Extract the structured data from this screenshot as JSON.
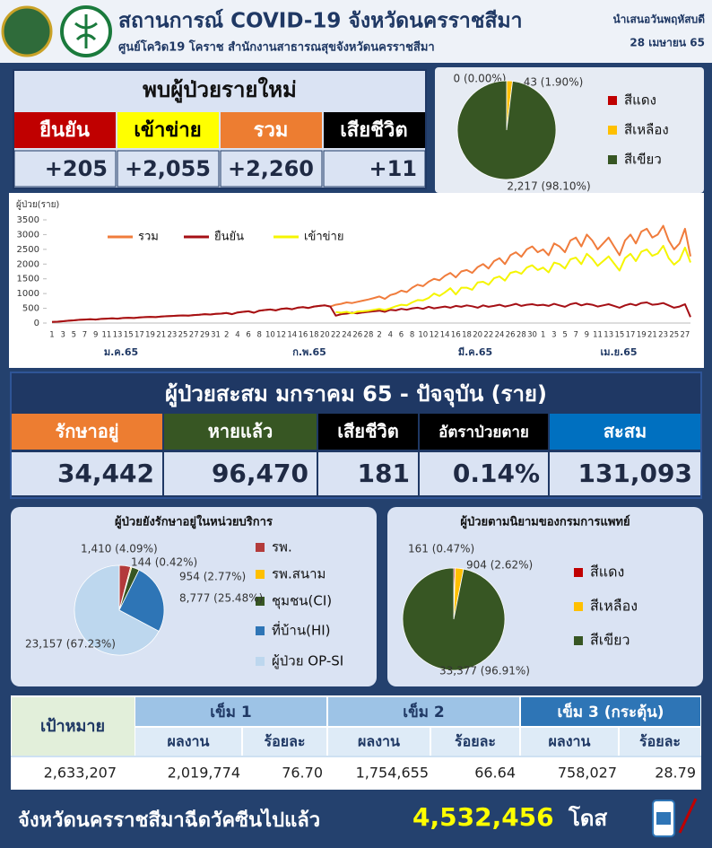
{
  "header": {
    "title": "สถานการณ์ COVID-19 จังหวัดนครราชสีมา",
    "subtitle": "ศูนย์โควิด19 โคราช สำนักงานสาธารณสุขจังหวัดนครราชสีมา",
    "presented": "นำเสนอวันพฤหัสบดี",
    "date": "28 เมษายน 65"
  },
  "new_cases": {
    "title": "พบผู้ป่วยรายใหม่",
    "headers": [
      "ยืนยัน",
      "เข้าข่าย",
      "รวม",
      "เสียชีวิต"
    ],
    "values": [
      "+205",
      "+2,055",
      "+2,260",
      "+11"
    ]
  },
  "cumulative": {
    "title": "ผู้ป่วยสะสม มกราคม 65 - ปัจจุบัน (ราย)",
    "headers": [
      "รักษาอยู่",
      "หายแล้ว",
      "เสียชีวิต",
      "อัตราป่วยตาย",
      "สะสม"
    ],
    "values": [
      "34,442",
      "96,470",
      "181",
      "0.14%",
      "131,093"
    ]
  },
  "vaccine": {
    "target_header": "เป้าหมาย",
    "dose_headers": [
      "เข็ม 1",
      "เข็ม 2",
      "เข็ม 3 (กระตุ้น)"
    ],
    "sub_headers": [
      "ผลงาน",
      "ร้อยละ",
      "ผลงาน",
      "ร้อยละ",
      "ผลงาน",
      "ร้อยละ"
    ],
    "row": [
      "2,633,207",
      "2,019,774",
      "76.70",
      "1,754,655",
      "66.64",
      "758,027",
      "28.79"
    ],
    "footer": {
      "text": "จังหวัดนครราชสีมาฉีดวัคซีนไปแล้ว",
      "total": "4,532,456",
      "unit": "โดส"
    }
  },
  "chart_data": [
    {
      "type": "pie",
      "categories": [
        "สีแดง",
        "สีเหลือง",
        "สีเขียว"
      ],
      "values": [
        0,
        43,
        2217
      ],
      "value_labels": [
        "0 (0.00%)",
        "43 (1.90%)",
        "2,217 (98.10%)"
      ],
      "colors": [
        "#c00000",
        "#ffc000",
        "#375623"
      ]
    },
    {
      "type": "line",
      "y_label": "ผู้ป่วย(ราย)",
      "categories": [
        "1",
        null,
        "3",
        null,
        "5",
        null,
        "7",
        null,
        "9",
        null,
        "11",
        null,
        "13",
        null,
        "15",
        null,
        "17",
        null,
        "19",
        null,
        "21",
        null,
        "23",
        null,
        "25",
        null,
        "27",
        null,
        "29",
        null,
        "31",
        null,
        "2",
        null,
        "4",
        null,
        "6",
        null,
        "8",
        null,
        "10",
        null,
        "12",
        null,
        "14",
        null,
        "16",
        null,
        "18",
        null,
        "20",
        null,
        "22",
        null,
        "24",
        null,
        "26",
        null,
        "28",
        null,
        "2",
        null,
        "4",
        null,
        "6",
        null,
        "8",
        null,
        "10",
        null,
        "12",
        null,
        "14",
        null,
        "16",
        null,
        "18",
        null,
        "20",
        null,
        "22",
        null,
        "24",
        null,
        "26",
        null,
        "28",
        null,
        "30",
        null,
        "1",
        null,
        "3",
        null,
        "5",
        null,
        "7",
        null,
        "9",
        null,
        "11",
        null,
        "13",
        null,
        "15",
        null,
        "17",
        null,
        "19",
        null,
        "21",
        null,
        "23",
        null,
        "25",
        null,
        "27",
        null
      ],
      "month_labels": [
        "ม.ค.65",
        "ก.พ.65",
        "มี.ค.65",
        "เม.ย.65"
      ],
      "series": [
        {
          "name": "รวม",
          "color": "#f07c3c",
          "values": [
            40,
            45,
            60,
            80,
            90,
            110,
            120,
            130,
            120,
            140,
            150,
            160,
            150,
            170,
            180,
            170,
            190,
            200,
            210,
            200,
            220,
            230,
            240,
            250,
            260,
            250,
            270,
            280,
            300,
            290,
            310,
            320,
            340,
            300,
            360,
            380,
            400,
            350,
            420,
            440,
            460,
            430,
            480,
            500,
            470,
            520,
            540,
            510,
            560,
            580,
            600,
            560,
            620,
            650,
            700,
            680,
            720,
            760,
            800,
            850,
            900,
            820,
            950,
            1000,
            1100,
            1050,
            1200,
            1300,
            1250,
            1400,
            1500,
            1450,
            1600,
            1700,
            1550,
            1750,
            1800,
            1700,
            1900,
            2000,
            1850,
            2100,
            2200,
            2000,
            2300,
            2400,
            2250,
            2500,
            2600,
            2400,
            2500,
            2300,
            2700,
            2600,
            2400,
            2800,
            2900,
            2600,
            3000,
            2800,
            2500,
            2700,
            2900,
            2600,
            2300,
            2800,
            3000,
            2700,
            3100,
            3200,
            2900,
            3000,
            3300,
            2800,
            2500,
            2700,
            3200,
            2260
          ]
        },
        {
          "name": "ยืนยัน",
          "color": "#a50f15",
          "values": [
            40,
            45,
            60,
            80,
            90,
            110,
            120,
            130,
            120,
            140,
            150,
            160,
            150,
            170,
            180,
            170,
            190,
            200,
            210,
            200,
            220,
            230,
            240,
            250,
            260,
            250,
            270,
            280,
            300,
            290,
            310,
            320,
            340,
            300,
            360,
            380,
            400,
            350,
            420,
            440,
            460,
            430,
            480,
            500,
            470,
            520,
            540,
            510,
            560,
            580,
            600,
            560,
            250,
            300,
            320,
            350,
            330,
            360,
            380,
            400,
            420,
            380,
            450,
            430,
            480,
            450,
            500,
            520,
            480,
            550,
            500,
            530,
            560,
            520,
            580,
            550,
            600,
            570,
            520,
            600,
            550,
            580,
            620,
            560,
            600,
            650,
            580,
            620,
            640,
            600,
            620,
            580,
            650,
            600,
            550,
            640,
            680,
            600,
            650,
            620,
            560,
            600,
            640,
            580,
            520,
            600,
            650,
            600,
            680,
            700,
            620,
            640,
            680,
            600,
            520,
            560,
            640,
            205
          ]
        },
        {
          "name": "เข้าข่าย",
          "color": "#f5f500",
          "values": [
            null,
            null,
            null,
            null,
            null,
            null,
            null,
            null,
            null,
            null,
            null,
            null,
            null,
            null,
            null,
            null,
            null,
            null,
            null,
            null,
            null,
            null,
            null,
            null,
            null,
            null,
            null,
            null,
            null,
            null,
            null,
            null,
            null,
            null,
            null,
            null,
            null,
            null,
            null,
            null,
            null,
            null,
            null,
            null,
            null,
            null,
            null,
            null,
            null,
            null,
            null,
            null,
            370,
            350,
            380,
            330,
            390,
            400,
            420,
            450,
            480,
            440,
            500,
            570,
            620,
            600,
            700,
            780,
            770,
            850,
            1000,
            920,
            1040,
            1180,
            970,
            1200,
            1200,
            1130,
            1380,
            1400,
            1300,
            1520,
            1580,
            1440,
            1700,
            1750,
            1670,
            1880,
            1960,
            1800,
            1880,
            1720,
            2050,
            2000,
            1850,
            2160,
            2220,
            2000,
            2350,
            2180,
            1940,
            2100,
            2260,
            2020,
            1780,
            2200,
            2350,
            2100,
            2420,
            2500,
            2280,
            2360,
            2620,
            2200,
            1980,
            2140,
            2560,
            2055
          ]
        }
      ],
      "ylim": [
        0,
        3500
      ],
      "yticks": [
        0,
        500,
        1000,
        1500,
        2000,
        2500,
        3000,
        3500
      ]
    },
    {
      "type": "pie",
      "title": "ผู้ป่วยยังรักษาอยู่ในหน่วยบริการ",
      "categories": [
        "รพ.",
        "รพ.สนาม",
        "ชุมชน(CI)",
        "ที่บ้าน(HI)",
        "ผู้ป่วย OP-SI"
      ],
      "values": [
        1410,
        144,
        954,
        8777,
        23157
      ],
      "value_labels": [
        "1,410 (4.09%)",
        "144 (0.42%)",
        "954 (2.77%)",
        "8,777 (25.48%)",
        "23,157 (67.23%)"
      ],
      "colors": [
        "#b33b3b",
        "#ffc000",
        "#375623",
        "#2e75b6",
        "#bdd7ee"
      ]
    },
    {
      "type": "pie",
      "title": "ผู้ป่วยตามนิยามของกรมการแพทย์",
      "categories": [
        "สีแดง",
        "สีเหลือง",
        "สีเขียว"
      ],
      "values": [
        161,
        904,
        33377
      ],
      "value_labels": [
        "161 (0.47%)",
        "904 (2.62%)",
        "33,377 (96.91%)"
      ],
      "colors": [
        "#c00000",
        "#ffc000",
        "#375623"
      ]
    }
  ]
}
